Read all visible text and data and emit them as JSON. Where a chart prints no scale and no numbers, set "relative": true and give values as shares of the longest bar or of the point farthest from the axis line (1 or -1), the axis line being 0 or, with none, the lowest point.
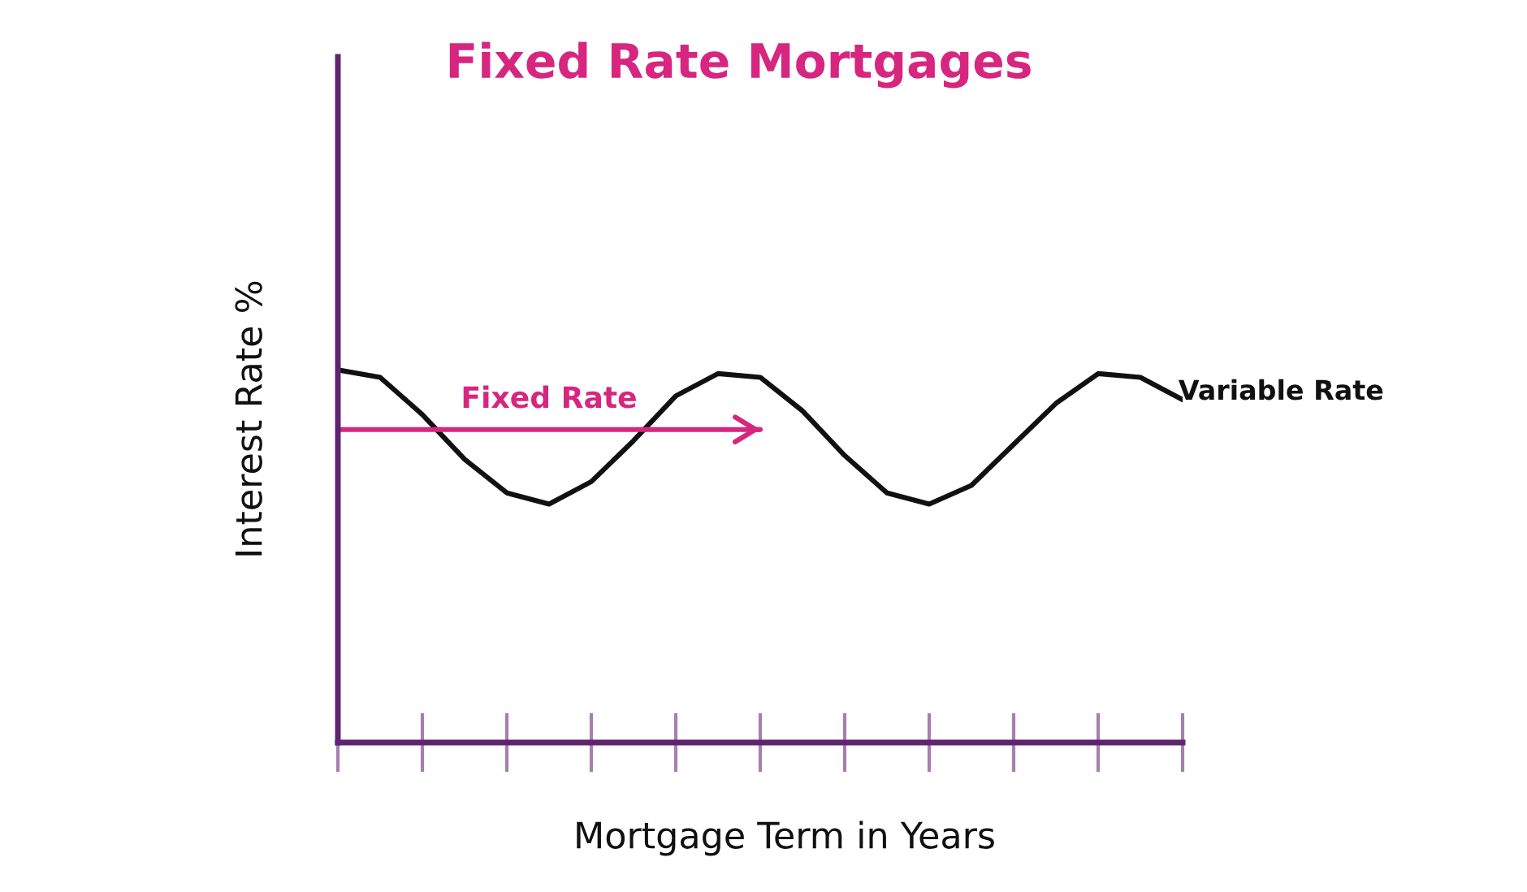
{
  "chart_data": {
    "type": "line",
    "title": "Fixed Rate Mortgages",
    "xlabel": "Mortgage Term in Years",
    "ylabel": "Interest Rate %",
    "relative": true,
    "categories": [
      null,
      null,
      null,
      null,
      null,
      null,
      null,
      null,
      null,
      null,
      null,
      null,
      null,
      null,
      null,
      null,
      null,
      null,
      null,
      null,
      null
    ],
    "series": [
      {
        "name": "Variable Rate",
        "color": "#111111",
        "values": [
          1.0,
          0.98,
          0.88,
          0.76,
          0.67,
          0.64,
          0.7,
          0.81,
          0.93,
          0.99,
          0.98,
          0.89,
          0.77,
          0.67,
          0.64,
          0.69,
          0.8,
          0.91,
          0.99,
          0.98,
          0.92
        ]
      },
      {
        "name": "Fixed Rate",
        "color": "#d6267f",
        "values": [
          0.84,
          0.84,
          0.84,
          0.84,
          0.84,
          0.84,
          0.84,
          0.84,
          0.84,
          0.84,
          0.84,
          null,
          null,
          null,
          null,
          null,
          null,
          null,
          null,
          null,
          null
        ]
      }
    ]
  }
}
